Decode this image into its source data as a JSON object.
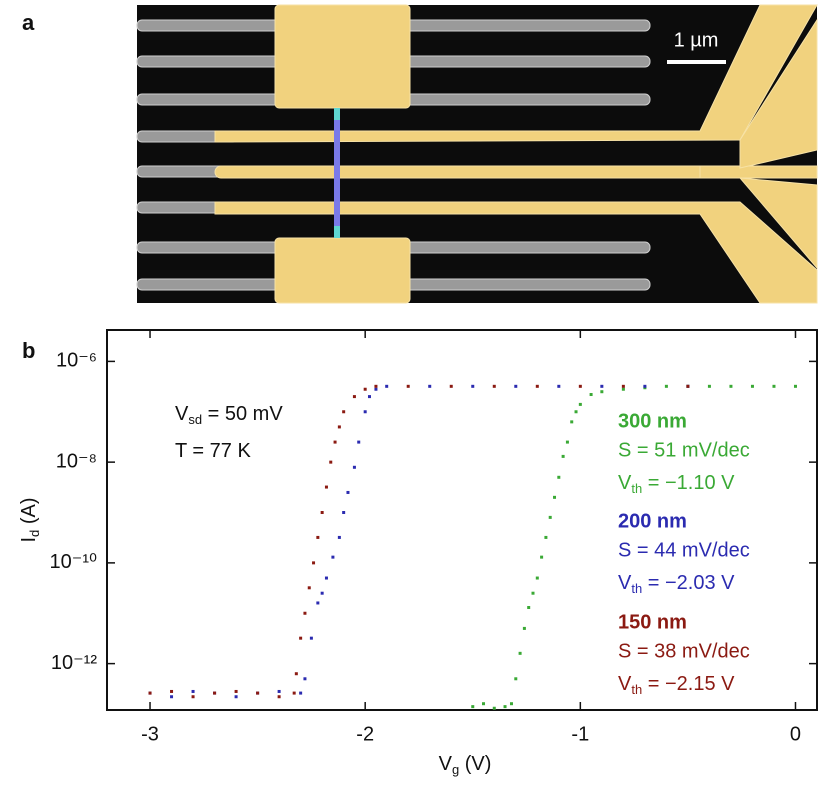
{
  "panel_a": {
    "label": "a",
    "scale_bar": "1 µm"
  },
  "panel_b": {
    "label": "b"
  },
  "chart_data": {
    "type": "scatter",
    "ylog": true,
    "xlabel": [
      "V",
      "g",
      " (V)"
    ],
    "ylabel": [
      "I",
      "d",
      " (A)"
    ],
    "xlim": [
      -3.2,
      0.1
    ],
    "ylim": [
      1.2e-13,
      4.2e-06
    ],
    "xticks": [
      -3,
      -2,
      -1,
      0
    ],
    "yticks": [
      {
        "value": 1e-06,
        "label": "10⁻⁶"
      },
      {
        "value": 1e-08,
        "label": "10⁻⁸"
      },
      {
        "value": 1e-10,
        "label": "10⁻¹⁰"
      },
      {
        "value": 1e-12,
        "label": "10⁻¹²"
      }
    ],
    "conditions": [
      [
        "V",
        "sd",
        " = 50 mV"
      ],
      [
        "T = 77 K"
      ]
    ],
    "series": [
      {
        "name": "300 nm",
        "color": "#3aa935",
        "swing": "S = 51 mV/dec",
        "threshold": [
          "V",
          "th",
          " = −1.10 V"
        ],
        "x": [
          -1.5,
          -1.45,
          -1.4,
          -1.35,
          -1.32,
          -1.3,
          -1.28,
          -1.26,
          -1.24,
          -1.22,
          -1.2,
          -1.18,
          -1.16,
          -1.14,
          -1.12,
          -1.1,
          -1.08,
          -1.06,
          -1.04,
          -1.02,
          -1.0,
          -0.95,
          -0.9,
          -0.8,
          -0.7,
          -0.6,
          -0.5,
          -0.4,
          -0.3,
          -0.2,
          -0.1,
          0.0
        ],
        "values": [
          1.4e-13,
          1.6e-13,
          1.3e-13,
          1.4e-13,
          1.6e-13,
          5e-13,
          1.6e-12,
          5e-12,
          1.3e-11,
          2.5e-11,
          5e-11,
          1.3e-10,
          3.2e-10,
          8e-10,
          2e-09,
          5e-09,
          1.3e-08,
          2.5e-08,
          6.3e-08,
          1e-07,
          1.4e-07,
          2.2e-07,
          2.5e-07,
          2.8e-07,
          3e-07,
          3.2e-07,
          3.2e-07,
          3.2e-07,
          3.2e-07,
          3.2e-07,
          3.2e-07,
          3.2e-07
        ]
      },
      {
        "name": "200 nm",
        "color": "#2b2bb0",
        "swing": "S = 44 mV/dec",
        "threshold": [
          "V",
          "th",
          " = −2.03 V"
        ],
        "x": [
          -3.0,
          -2.9,
          -2.8,
          -2.7,
          -2.6,
          -2.5,
          -2.4,
          -2.3,
          -2.28,
          -2.25,
          -2.22,
          -2.2,
          -2.18,
          -2.15,
          -2.12,
          -2.1,
          -2.08,
          -2.05,
          -2.03,
          -2.0,
          -1.98,
          -1.95,
          -1.9,
          -1.7,
          -1.5,
          -1.3,
          -1.1,
          -0.9,
          -0.7,
          -0.5
        ],
        "values": [
          2.6e-13,
          2.2e-13,
          2.8e-13,
          2.6e-13,
          2.2e-13,
          2.6e-13,
          2.8e-13,
          2.6e-13,
          5e-13,
          3.2e-12,
          1.6e-11,
          2.5e-11,
          5e-11,
          1.3e-10,
          3.2e-10,
          1e-09,
          2.5e-09,
          7.9e-09,
          2.5e-08,
          1e-07,
          2e-07,
          2.8e-07,
          3.2e-07,
          3.2e-07,
          3.2e-07,
          3.2e-07,
          3.2e-07,
          3.2e-07,
          3.2e-07,
          3.2e-07
        ]
      },
      {
        "name": "150 nm",
        "color": "#8b1a12",
        "swing": "S = 38 mV/dec",
        "threshold": [
          "V",
          "th",
          " = −2.15 V"
        ],
        "x": [
          -3.0,
          -2.9,
          -2.8,
          -2.7,
          -2.6,
          -2.5,
          -2.4,
          -2.33,
          -2.32,
          -2.3,
          -2.28,
          -2.26,
          -2.24,
          -2.22,
          -2.2,
          -2.18,
          -2.16,
          -2.14,
          -2.12,
          -2.1,
          -2.05,
          -2.0,
          -1.95,
          -1.8,
          -1.6,
          -1.4,
          -1.2,
          -1.0,
          -0.8,
          -0.5
        ],
        "values": [
          2.6e-13,
          2.8e-13,
          2.2e-13,
          2.6e-13,
          2.8e-13,
          2.6e-13,
          2.2e-13,
          2.6e-13,
          6.3e-13,
          3.2e-12,
          1e-11,
          3.2e-11,
          1e-10,
          3.2e-10,
          1e-09,
          3.2e-09,
          1e-08,
          2.5e-08,
          5e-08,
          1e-07,
          2e-07,
          2.8e-07,
          3.2e-07,
          3.2e-07,
          3.2e-07,
          3.2e-07,
          3.2e-07,
          3.2e-07,
          3.2e-07,
          3.2e-07
        ]
      }
    ]
  }
}
